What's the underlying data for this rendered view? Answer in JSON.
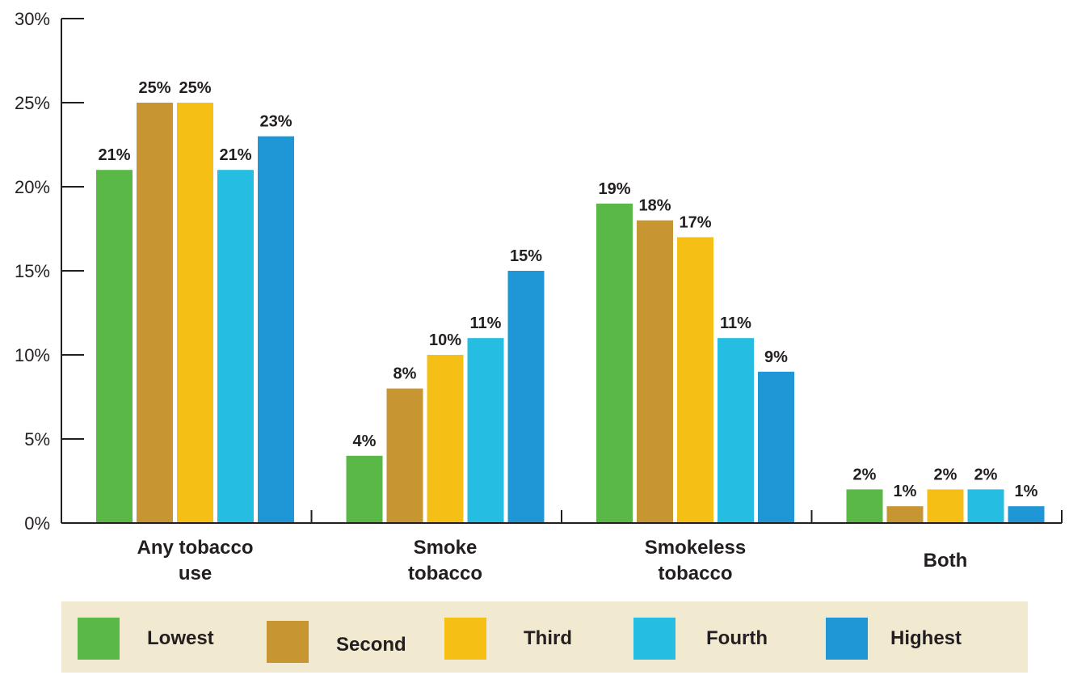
{
  "chart_data": {
    "type": "bar",
    "categories": [
      [
        "Any tobacco",
        "use"
      ],
      [
        "Smoke",
        "tobacco"
      ],
      [
        "Smokeless",
        "tobacco"
      ],
      [
        "Both"
      ]
    ],
    "y_ticks": [
      "0%",
      "5%",
      "10%",
      "15%",
      "20%",
      "25%",
      "30%"
    ],
    "ylim": [
      0,
      30
    ],
    "series": [
      {
        "name": "Lowest",
        "color": "#5ab946",
        "values": [
          21,
          4,
          19,
          2
        ],
        "labels": [
          "21%",
          "4%",
          "19%",
          "2%"
        ]
      },
      {
        "name": "Second",
        "color": "#c79632",
        "values": [
          25,
          8,
          18,
          1
        ],
        "labels": [
          "25%",
          "8%",
          "18%",
          "1%"
        ]
      },
      {
        "name": "Third",
        "color": "#f6bf16",
        "values": [
          25,
          10,
          17,
          2
        ],
        "labels": [
          "25%",
          "10%",
          "17%",
          "2%"
        ]
      },
      {
        "name": "Fourth",
        "color": "#26bde2",
        "values": [
          21,
          11,
          11,
          2
        ],
        "labels": [
          "21%",
          "11%",
          "11%",
          "2%"
        ]
      },
      {
        "name": "Highest",
        "color": "#1f97d6",
        "values": [
          23,
          15,
          9,
          1
        ],
        "labels": [
          "23%",
          "15%",
          "9%",
          "1%"
        ]
      }
    ],
    "legend_position": "bottom",
    "grid": false
  }
}
